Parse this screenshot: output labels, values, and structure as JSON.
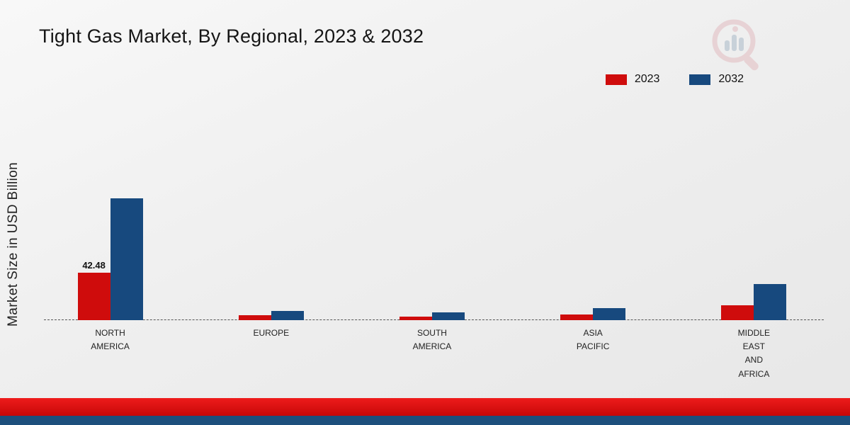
{
  "title": "Tight Gas Market, By Regional, 2023 & 2032",
  "ylabel": "Market Size in USD Billion",
  "legend": [
    {
      "label": "2023",
      "color": "#cf0c0c"
    },
    {
      "label": "2032",
      "color": "#17497e"
    }
  ],
  "chart_data": {
    "type": "bar",
    "title": "Tight Gas Market, By Regional, 2023 & 2032",
    "xlabel": "",
    "ylabel": "Market Size in USD Billion",
    "categories": [
      "North America",
      "Europe",
      "South America",
      "Asia Pacific",
      "Middle East and Africa"
    ],
    "categories_display": [
      "NORTH\nAMERICA",
      "EUROPE",
      "SOUTH\nAMERICA",
      "ASIA\nPACIFIC",
      "MIDDLE\nEAST\nAND\nAFRICA"
    ],
    "series": [
      {
        "name": "2023",
        "color": "#cf0c0c",
        "values": [
          42.48,
          4.5,
          3.0,
          5.0,
          13.0
        ]
      },
      {
        "name": "2032",
        "color": "#17497e",
        "values": [
          109.0,
          8.0,
          7.0,
          10.5,
          32.0
        ]
      }
    ],
    "annotations": [
      {
        "category_index": 0,
        "series": "2023",
        "text": "42.48"
      }
    ],
    "ylim": [
      0,
      120
    ],
    "grid": false,
    "legend_position": "top-right",
    "baseline_style": "dashed"
  },
  "icons": {
    "logo": "magnifier-bar-chart-logo"
  }
}
